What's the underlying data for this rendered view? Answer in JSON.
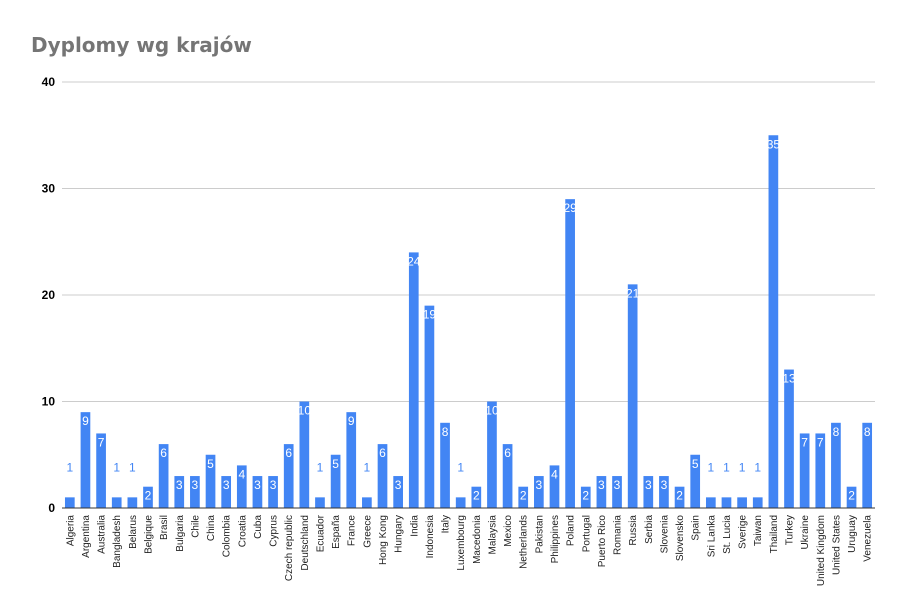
{
  "chart_data": {
    "type": "bar",
    "title": "Dyplomy wg krajów",
    "xlabel": "",
    "ylabel": "",
    "ylim": [
      0,
      40
    ],
    "yticks": [
      "0",
      "10",
      "20",
      "30",
      "40"
    ],
    "grid": true,
    "legend": "none",
    "bar_color": "#4285f4",
    "label_inside_color": "#ffffff",
    "label_outside_color": "#4285f4",
    "categories": [
      "Algeria",
      "Argentina",
      "Australia",
      "Bangladesh",
      "Belarus",
      "Belgique",
      "Brasil",
      "Bulgaria",
      "Chile",
      "China",
      "Colombia",
      "Croatia",
      "Cuba",
      "Cyprus",
      "Czech republic",
      "Deutschland",
      "Ecuador",
      "España",
      "France",
      "Greece",
      "Hong Kong",
      "Hungary",
      "India",
      "Indonesia",
      "Italy",
      "Luxembourg",
      "Macedonia",
      "Malaysia",
      "Mexico",
      "Netherlands",
      "Pakistan",
      "Philippines",
      "Poland",
      "Portugal",
      "Puerto Rico",
      "Romania",
      "Russia",
      "Serbia",
      "Slovenia",
      "Slovensko",
      "Spain",
      "Sri Lanka",
      "St. Lucia",
      "Sverige",
      "Taiwan",
      "Thailand",
      "Turkey",
      "Ukraine",
      "United Kingdom",
      "United States",
      "Uruguay",
      "Venezuela"
    ],
    "values": [
      1,
      9,
      7,
      1,
      1,
      2,
      6,
      3,
      3,
      5,
      3,
      4,
      3,
      3,
      6,
      10,
      1,
      5,
      9,
      1,
      6,
      3,
      24,
      19,
      8,
      1,
      2,
      10,
      6,
      2,
      3,
      4,
      29,
      2,
      3,
      3,
      21,
      3,
      3,
      2,
      5,
      1,
      1,
      1,
      1,
      35,
      13,
      7,
      7,
      8,
      2,
      8
    ]
  }
}
